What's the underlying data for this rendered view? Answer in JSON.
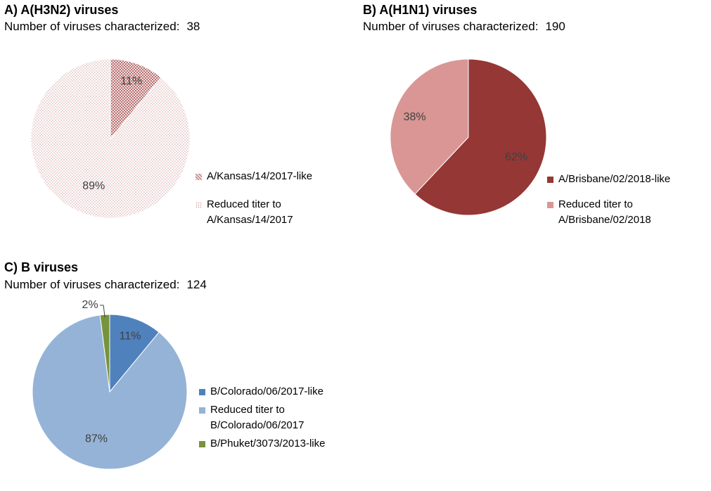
{
  "chart_data": [
    {
      "type": "pie",
      "title": "A) A(H3N2) viruses",
      "subtitle_label": "Number of viruses characterized:",
      "subtitle_count": "38",
      "labels": [
        "A/Kansas/14/2017-like",
        "Reduced titer to A/Kansas/14/2017"
      ],
      "values": [
        11,
        89
      ],
      "data_labels": [
        "11%",
        "89%"
      ],
      "colors": [
        "#d9a7a7",
        "#e9c9c9"
      ],
      "patterns": [
        "crosshatch",
        "dots"
      ],
      "legend_placement": "right"
    },
    {
      "type": "pie",
      "title": "B) A(H1N1) viruses",
      "subtitle_label": "Number of viruses characterized:",
      "subtitle_count": "190",
      "labels": [
        "A/Brisbane/02/2018-like",
        "Reduced titer to A/Brisbane/02/2018"
      ],
      "values": [
        62,
        38
      ],
      "data_labels": [
        "62%",
        "38%"
      ],
      "colors": [
        "#953735",
        "#d99694"
      ],
      "legend_placement": "right"
    },
    {
      "type": "pie",
      "title": "C) B viruses",
      "subtitle_label": "Number of viruses characterized:",
      "subtitle_count": "124",
      "labels": [
        "B/Colorado/06/2017-like",
        "Reduced titer to B/Colorado/06/2017",
        "B/Phuket/3073/2013-like"
      ],
      "values": [
        11,
        87,
        2
      ],
      "data_labels": [
        "11%",
        "87%",
        "2%"
      ],
      "colors": [
        "#4f81bd",
        "#95b3d7",
        "#77933c"
      ],
      "legend_placement": "right"
    }
  ]
}
